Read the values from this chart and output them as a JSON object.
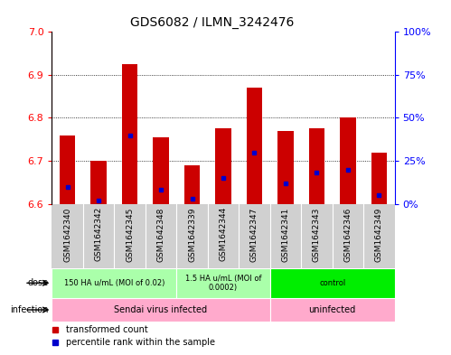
{
  "title": "GDS6082 / ILMN_3242476",
  "samples": [
    "GSM1642340",
    "GSM1642342",
    "GSM1642345",
    "GSM1642348",
    "GSM1642339",
    "GSM1642344",
    "GSM1642347",
    "GSM1642341",
    "GSM1642343",
    "GSM1642346",
    "GSM1642349"
  ],
  "transformed_counts": [
    6.76,
    6.7,
    6.925,
    6.755,
    6.69,
    6.775,
    6.87,
    6.77,
    6.775,
    6.8,
    6.72
  ],
  "percentile_ranks": [
    10,
    2,
    40,
    8,
    3,
    15,
    30,
    12,
    18,
    20,
    5
  ],
  "ymin": 6.6,
  "ymax": 7.0,
  "yticks": [
    6.6,
    6.7,
    6.8,
    6.9,
    7.0
  ],
  "right_yticks": [
    0,
    25,
    50,
    75,
    100
  ],
  "right_yticklabels": [
    "0%",
    "25%",
    "50%",
    "75%",
    "100%"
  ],
  "dose_labels": [
    {
      "text": "150 HA u/mL (MOI of 0.02)",
      "start": 0,
      "end": 4,
      "color": "#aaffaa"
    },
    {
      "text": "1.5 HA u/mL (MOI of\n0.0002)",
      "start": 4,
      "end": 7,
      "color": "#aaffaa"
    },
    {
      "text": "control",
      "start": 7,
      "end": 11,
      "color": "#00ee00"
    }
  ],
  "infection_labels": [
    {
      "text": "Sendai virus infected",
      "start": 0,
      "end": 7,
      "color": "#ffaacc"
    },
    {
      "text": "uninfected",
      "start": 7,
      "end": 11,
      "color": "#ffaacc"
    }
  ],
  "bar_color": "#cc0000",
  "percentile_color": "#0000cc",
  "bg_color": "#ffffff",
  "plot_bg": "#ffffff",
  "sample_bg": "#d0d0d0",
  "legend_items": [
    {
      "label": "transformed count",
      "color": "#cc0000"
    },
    {
      "label": "percentile rank within the sample",
      "color": "#0000cc"
    }
  ]
}
